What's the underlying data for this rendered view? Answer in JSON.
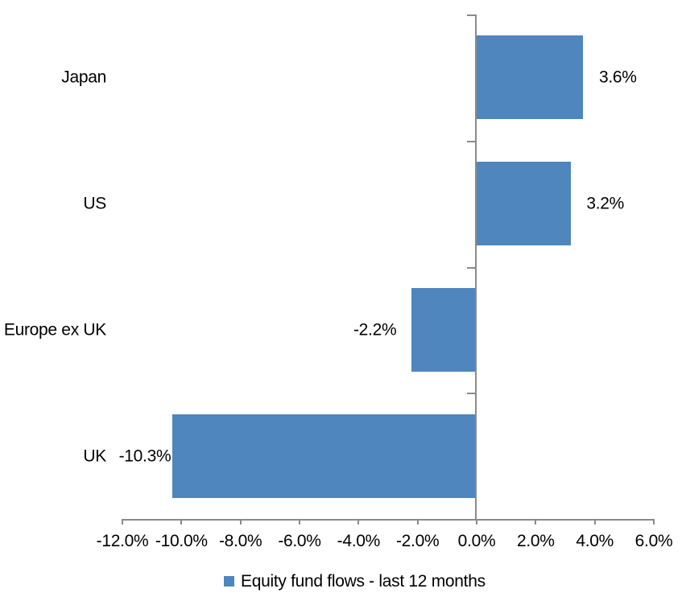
{
  "chart_data": {
    "type": "bar",
    "orientation": "horizontal",
    "title": "",
    "xlabel": "",
    "ylabel": "",
    "categories": [
      "Japan",
      "US",
      "Europe ex UK",
      "UK"
    ],
    "series": [
      {
        "name": "Equity fund flows - last 12 months",
        "values": [
          3.6,
          3.2,
          -2.2,
          -10.3
        ],
        "value_labels": [
          "3.6%",
          "3.2%",
          "-2.2%",
          "-10.3%"
        ]
      }
    ],
    "xlim": [
      -12,
      6
    ],
    "x_tick_step": 2,
    "x_tick_labels": [
      "-12.0%",
      "-10.0%",
      "-8.0%",
      "-6.0%",
      "-4.0%",
      "-2.0%",
      "0.0%",
      "2.0%",
      "4.0%",
      "6.0%"
    ],
    "grid": "off",
    "legend_position": "bottom",
    "colors": {
      "bar": "#4E86BD",
      "axis": "#8A8A8A",
      "text": "#000000",
      "background": "#FFFFFF"
    }
  },
  "legend": {
    "label": "Equity fund flows - last 12 months"
  }
}
